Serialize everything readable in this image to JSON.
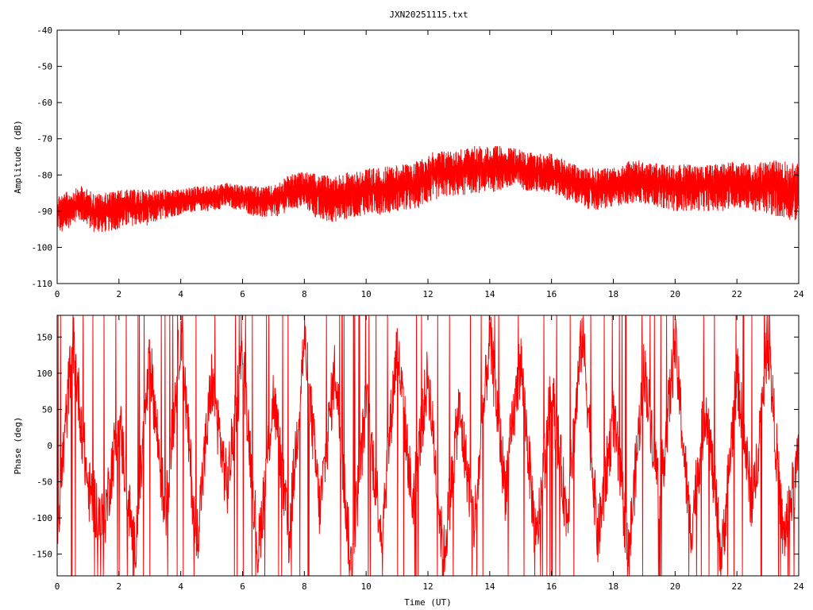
{
  "title": "JXN20251115.txt",
  "chart_data": [
    {
      "type": "line",
      "title": "JXN20251115.txt",
      "xlabel": "",
      "ylabel": "Amplitude (dB)",
      "xlim": [
        0,
        24
      ],
      "ylim": [
        -110,
        -40
      ],
      "xticks": [
        0,
        2,
        4,
        6,
        8,
        10,
        12,
        14,
        16,
        18,
        20,
        22,
        24
      ],
      "yticks": [
        -40,
        -50,
        -60,
        -70,
        -80,
        -90,
        -100,
        -110
      ],
      "xtick_labels": [
        "0",
        "2",
        "4",
        "6",
        "8",
        "10",
        "12",
        "14",
        "16",
        "18",
        "20",
        "22",
        "24"
      ],
      "ytick_labels": [
        "-40",
        "-50",
        "-60",
        "-70",
        "-80",
        "-90",
        "-100",
        "-110"
      ],
      "grid": false,
      "line_color": "#ff0000",
      "series": [
        {
          "x": [
            0,
            0.2,
            0.5,
            0.8,
            1.2,
            1.5,
            2,
            2.5,
            3,
            3.5,
            4,
            4.5,
            5,
            5.5,
            6,
            6.5,
            7,
            7.5,
            8,
            8.5,
            9,
            9.5,
            10,
            10.5,
            11,
            11.5,
            12,
            12.5,
            13,
            13.5,
            14,
            14.5,
            15,
            15.5,
            16,
            16.5,
            17,
            17.5,
            18,
            18.5,
            19,
            19.5,
            20,
            20.5,
            21,
            21.5,
            22,
            22.5,
            23,
            23.5,
            24
          ],
          "y_mean": [
            -91,
            -93,
            -90,
            -89,
            -91,
            -91,
            -91,
            -90,
            -90,
            -89,
            -88,
            -87,
            -87,
            -86,
            -87,
            -88,
            -88,
            -86,
            -85,
            -86,
            -86,
            -86,
            -85,
            -85,
            -84,
            -84,
            -82,
            -81,
            -80,
            -79,
            -79,
            -79,
            -79,
            -80,
            -80,
            -82,
            -84,
            -84,
            -83,
            -82,
            -82,
            -83,
            -83,
            -83,
            -83,
            -83,
            -82,
            -83,
            -83,
            -83,
            -84
          ],
          "y_high": [
            -85,
            -85,
            -84,
            -83,
            -85,
            -85,
            -84,
            -84,
            -84,
            -84,
            -84,
            -83,
            -83,
            -82,
            -83,
            -83,
            -83,
            -80,
            -79,
            -80,
            -80,
            -79,
            -78,
            -78,
            -77,
            -77,
            -74,
            -73,
            -73,
            -72,
            -72,
            -72,
            -73,
            -74,
            -74,
            -76,
            -78,
            -78,
            -78,
            -76,
            -76,
            -77,
            -77,
            -77,
            -77,
            -77,
            -76,
            -77,
            -76,
            -76,
            -77
          ],
          "y_low": [
            -95,
            -97,
            -93,
            -93,
            -96,
            -96,
            -95,
            -94,
            -94,
            -92,
            -91,
            -90,
            -90,
            -89,
            -90,
            -92,
            -92,
            -90,
            -89,
            -93,
            -93,
            -92,
            -91,
            -91,
            -90,
            -90,
            -88,
            -86,
            -86,
            -85,
            -85,
            -84,
            -84,
            -85,
            -85,
            -87,
            -89,
            -90,
            -89,
            -88,
            -88,
            -89,
            -90,
            -90,
            -90,
            -90,
            -89,
            -90,
            -91,
            -92,
            -93
          ]
        }
      ]
    },
    {
      "type": "line",
      "title": "",
      "xlabel": "Time (UT)",
      "ylabel": "Phase (deg)",
      "xlim": [
        0,
        24
      ],
      "ylim": [
        -180,
        180
      ],
      "xticks": [
        0,
        2,
        4,
        6,
        8,
        10,
        12,
        14,
        16,
        18,
        20,
        22,
        24
      ],
      "yticks": [
        150,
        100,
        50,
        0,
        -50,
        -100,
        -150
      ],
      "xtick_labels": [
        "0",
        "2",
        "4",
        "6",
        "8",
        "10",
        "12",
        "14",
        "16",
        "18",
        "20",
        "22",
        "24"
      ],
      "ytick_labels": [
        "150",
        "100",
        "50",
        "0",
        "-50",
        "-100",
        "-150"
      ],
      "grid": false,
      "line_color": "#ff0000",
      "series": [
        {
          "x": [
            0,
            0.5,
            1,
            1.5,
            2,
            2.5,
            3,
            3.5,
            4,
            4.5,
            5,
            5.5,
            6,
            6.5,
            7,
            7.5,
            8,
            8.5,
            9,
            9.5,
            10,
            10.5,
            11,
            11.5,
            12,
            12.5,
            13,
            13.5,
            14,
            14.5,
            15,
            15.5,
            16,
            16.5,
            17,
            17.5,
            18,
            18.5,
            19,
            19.5,
            20,
            20.5,
            21,
            21.5,
            22,
            22.5,
            23,
            23.5,
            24
          ],
          "y": [
            -120,
            150,
            -60,
            -110,
            40,
            -150,
            120,
            -100,
            160,
            -140,
            90,
            -60,
            130,
            -150,
            70,
            -130,
            150,
            -90,
            110,
            -170,
            60,
            -120,
            140,
            -80,
            100,
            -160,
            50,
            -110,
            150,
            -60,
            120,
            -140,
            80,
            -100,
            160,
            -130,
            40,
            -150,
            110,
            -70,
            140,
            -120,
            60,
            -160,
            100,
            -90,
            150,
            -130,
            -20
          ]
        }
      ]
    }
  ]
}
